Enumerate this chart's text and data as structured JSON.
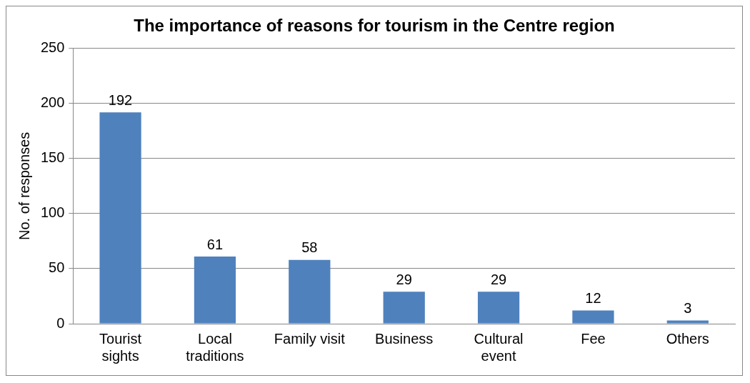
{
  "chart_data": {
    "type": "bar",
    "title": "The importance of reasons for tourism in the Centre region",
    "ylabel": "No. of responses",
    "categories": [
      "Tourist sights",
      "Local traditions",
      "Family visit",
      "Business",
      "Cultural event",
      "Fee",
      "Others"
    ],
    "values": [
      192,
      61,
      58,
      29,
      29,
      12,
      3
    ],
    "color": "#4f81bd",
    "ylim": [
      0,
      250
    ],
    "yticks": [
      0,
      50,
      100,
      150,
      200,
      250
    ],
    "grid": "y",
    "data_labels": true,
    "legend": false
  }
}
